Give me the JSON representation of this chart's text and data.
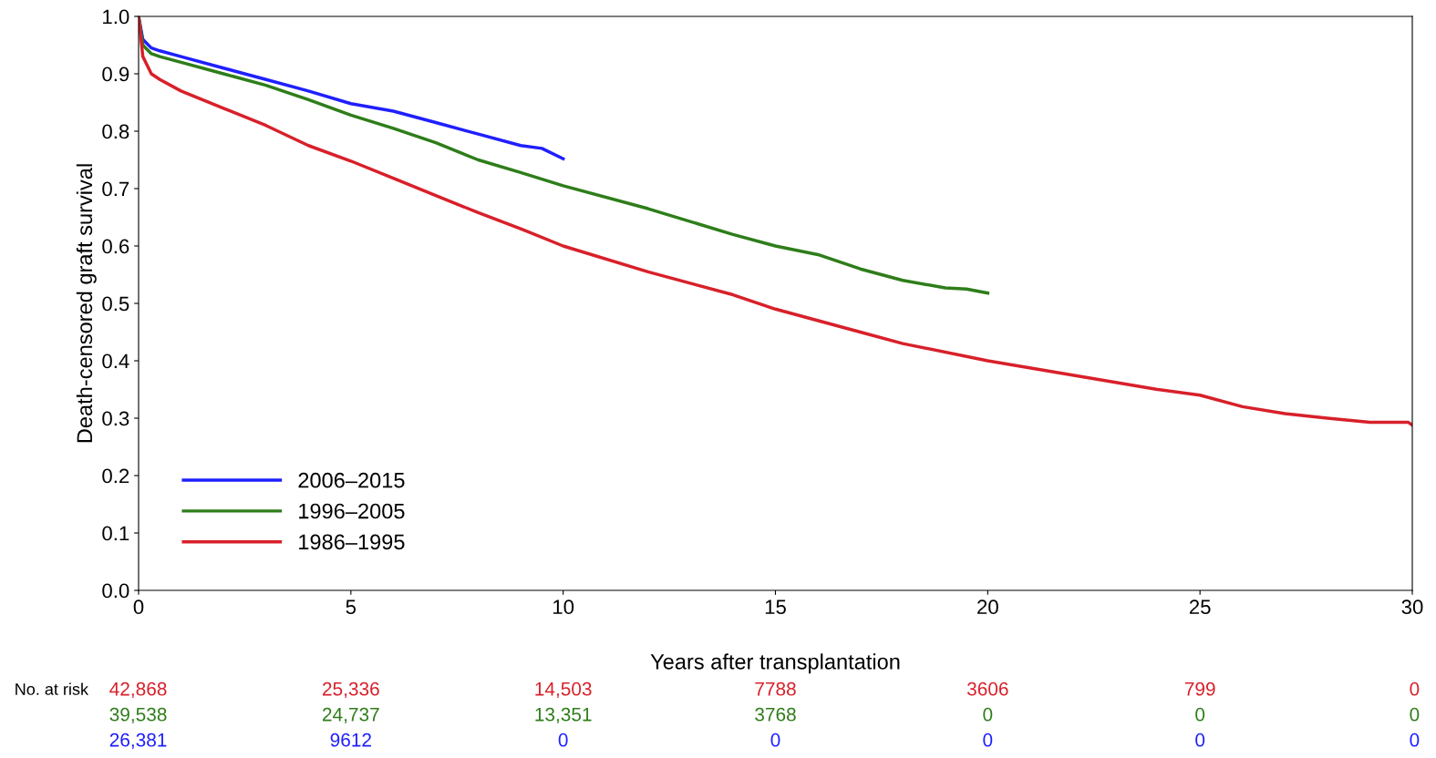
{
  "chart_data": {
    "type": "line",
    "xlabel": "Years after transplantation",
    "ylabel": "Death-censored graft survival",
    "xlim": [
      0,
      30
    ],
    "xticks": [
      0,
      5,
      10,
      15,
      20,
      25,
      30
    ],
    "ylim": [
      0,
      1
    ],
    "yticks": [
      {
        "value": 0,
        "label": "0.0"
      },
      0.1,
      0.2,
      0.3,
      0.4,
      0.5,
      0.6,
      0.7,
      0.8,
      0.9,
      {
        "value": 1,
        "label": "1.0"
      }
    ],
    "grid": false,
    "legend": "bottom left",
    "marker": "none",
    "line_style": "solid",
    "series": [
      {
        "name": "2006–2015",
        "color": "#1f1fff",
        "x": [
          0,
          0.1,
          0.3,
          0.5,
          1,
          2,
          3,
          4,
          5,
          6,
          7,
          8,
          9,
          9.5,
          10
        ],
        "values": [
          1.0,
          0.96,
          0.945,
          0.94,
          0.93,
          0.91,
          0.89,
          0.87,
          0.848,
          0.835,
          0.815,
          0.795,
          0.775,
          0.77,
          0.752
        ]
      },
      {
        "name": "1996–2005",
        "color": "#2e7d1a",
        "x": [
          0,
          0.1,
          0.3,
          0.5,
          1,
          2,
          3,
          4,
          5,
          6,
          7,
          8,
          9,
          10,
          12,
          14,
          15,
          16,
          17,
          18,
          19,
          19.5,
          20
        ],
        "values": [
          1.0,
          0.95,
          0.935,
          0.93,
          0.92,
          0.9,
          0.88,
          0.855,
          0.828,
          0.805,
          0.78,
          0.75,
          0.728,
          0.705,
          0.665,
          0.62,
          0.6,
          0.585,
          0.56,
          0.54,
          0.527,
          0.525,
          0.518
        ]
      },
      {
        "name": "1986–1995",
        "color": "#d8202a",
        "x": [
          0,
          0.1,
          0.3,
          0.5,
          1,
          2,
          3,
          4,
          5,
          6,
          7,
          8,
          9,
          10,
          12,
          14,
          15,
          17,
          18,
          20,
          22,
          24,
          25,
          26,
          27,
          28,
          29,
          29.9,
          30
        ],
        "values": [
          1.0,
          0.93,
          0.9,
          0.89,
          0.87,
          0.84,
          0.81,
          0.775,
          0.748,
          0.718,
          0.688,
          0.658,
          0.63,
          0.6,
          0.555,
          0.515,
          0.49,
          0.45,
          0.43,
          0.4,
          0.375,
          0.35,
          0.34,
          0.32,
          0.308,
          0.3,
          0.293,
          0.293,
          0.288
        ]
      }
    ],
    "annotations": [
      "No. at risk",
      "42,868",
      "25,336",
      "14,503",
      "7788",
      "3606",
      "799",
      "0",
      "39,538",
      "24,737",
      "13,351",
      "3768",
      "0",
      "0",
      "0",
      "26,381",
      "9612",
      "0",
      "0",
      "0",
      "0",
      "0"
    ]
  }
}
